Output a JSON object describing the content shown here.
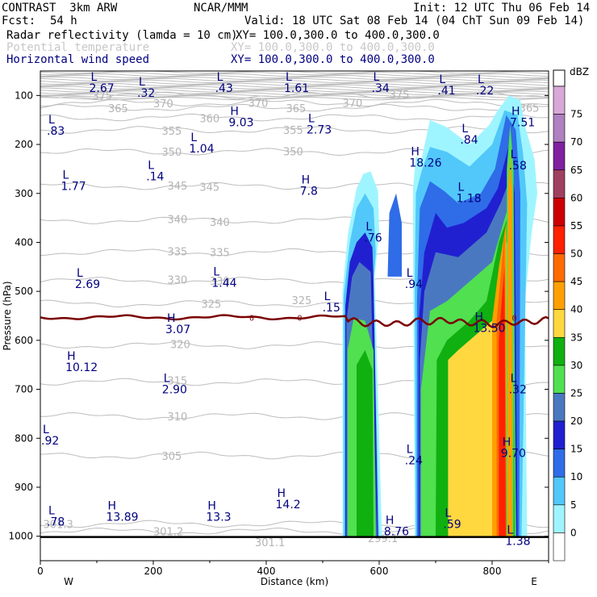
{
  "header": {
    "model": "CONTRAST  3km ARW",
    "org": "NCAR/MMM",
    "init": "Init: 12 UTC Thu 06 Feb 14",
    "fcst_label": "Fcst:",
    "fcst_value": "54 h",
    "valid": "Valid: 18 UTC Sat 08 Feb 14 (04 ChT Sun 09 Feb 14)",
    "fields": [
      {
        "name": "Radar reflectivity (lamda = 10 cm)",
        "xy": "XY= 100.0,300.0 to 400.0,300.0",
        "color": "#000000"
      },
      {
        "name": "Potential temperature",
        "xy": "XY= 100.0,300.0 to 400.0,300.0",
        "color": "#c8c8c8"
      },
      {
        "name": "Horizontal wind speed",
        "xy": "XY= 100.0,300.0 to 400.0,300.0",
        "color": "#000080"
      }
    ]
  },
  "chart_data": {
    "type": "heatmap",
    "xlabel": "Distance (km)",
    "ylabel": "Pressure (hPa)",
    "xlim": [
      0,
      900
    ],
    "ylim": [
      1050,
      50
    ],
    "x_ticks": [
      0,
      200,
      400,
      600,
      800
    ],
    "y_ticks": [
      100,
      200,
      300,
      400,
      500,
      600,
      700,
      800,
      900,
      1000
    ],
    "x_end_labels": [
      "W",
      "E"
    ],
    "colorbar": {
      "unit": "dBZ",
      "levels": [
        0,
        5,
        10,
        15,
        20,
        25,
        30,
        35,
        40,
        45,
        50,
        55,
        60,
        65,
        70,
        75
      ],
      "colors": [
        "#ffffff",
        "#9ff5ff",
        "#52c8fa",
        "#2f6ce8",
        "#2020d0",
        "#4a78c0",
        "#50e050",
        "#10b010",
        "#ffd840",
        "#ffa000",
        "#ff6a00",
        "#ff2000",
        "#cc0000",
        "#a04060",
        "#8020a0",
        "#b080c0",
        "#d8a8d8"
      ]
    },
    "theta_contours": [
      {
        "label": "375",
        "p": 100
      },
      {
        "label": "370",
        "p": 115
      },
      {
        "label": "365",
        "p": 125
      },
      {
        "label": "360",
        "p": 145
      },
      {
        "label": "355",
        "p": 170
      },
      {
        "label": "350",
        "p": 215
      },
      {
        "label": "345",
        "p": 285
      },
      {
        "label": "340",
        "p": 355
      },
      {
        "label": "335",
        "p": 420
      },
      {
        "label": "330",
        "p": 478
      },
      {
        "label": "325",
        "p": 525
      },
      {
        "label": "320",
        "p": 610
      },
      {
        "label": "315",
        "p": 685
      },
      {
        "label": "310",
        "p": 755
      },
      {
        "label": "305",
        "p": 835
      },
      {
        "label": "301.3",
        "p": 975
      },
      {
        "label": "301.2",
        "p": 990
      },
      {
        "label": "301.1",
        "p": 1012
      },
      {
        "label": "299.1",
        "p": 1004
      }
    ],
    "freezing_level": {
      "label": "0",
      "p_mean": 553
    },
    "wind_extrema": [
      {
        "type": "L",
        "value": "2.67",
        "x": 95,
        "p": 70
      },
      {
        "type": "L",
        "value": ".32",
        "x": 180,
        "p": 80
      },
      {
        "type": "L",
        "value": ".43",
        "x": 318,
        "p": 70
      },
      {
        "type": "L",
        "value": "1.61",
        "x": 440,
        "p": 70
      },
      {
        "type": "L",
        "value": ".34",
        "x": 595,
        "p": 70
      },
      {
        "type": "L",
        "value": ".41",
        "x": 712,
        "p": 75
      },
      {
        "type": "L",
        "value": ".22",
        "x": 780,
        "p": 75
      },
      {
        "type": "L",
        "value": ".83",
        "x": 20,
        "p": 157
      },
      {
        "type": "H",
        "value": "9.03",
        "x": 342,
        "p": 140
      },
      {
        "type": "L",
        "value": "2.73",
        "x": 480,
        "p": 155
      },
      {
        "type": "H",
        "value": "7.51",
        "x": 840,
        "p": 140
      },
      {
        "type": "L",
        "value": ".84",
        "x": 752,
        "p": 175
      },
      {
        "type": "L",
        "value": "1.04",
        "x": 272,
        "p": 193
      },
      {
        "type": "H",
        "value": "18.26",
        "x": 662,
        "p": 222
      },
      {
        "type": "L",
        "value": ".58",
        "x": 838,
        "p": 228
      },
      {
        "type": "L",
        "value": ".14",
        "x": 196,
        "p": 250
      },
      {
        "type": "L",
        "value": "1.77",
        "x": 45,
        "p": 270
      },
      {
        "type": "H",
        "value": "7.8",
        "x": 468,
        "p": 280
      },
      {
        "type": "L",
        "value": "1.18",
        "x": 745,
        "p": 295
      },
      {
        "type": "L",
        "value": ".76",
        "x": 582,
        "p": 375
      },
      {
        "type": "L",
        "value": "2.69",
        "x": 70,
        "p": 470
      },
      {
        "type": "L",
        "value": "1.44",
        "x": 312,
        "p": 468
      },
      {
        "type": "L",
        "value": ".94",
        "x": 654,
        "p": 470
      },
      {
        "type": "L",
        "value": ".15",
        "x": 508,
        "p": 518
      },
      {
        "type": "H",
        "value": "3.07",
        "x": 230,
        "p": 562
      },
      {
        "type": "H",
        "value": "13.50",
        "x": 775,
        "p": 560
      },
      {
        "type": "H",
        "value": "10.12",
        "x": 53,
        "p": 640
      },
      {
        "type": "L",
        "value": "2.90",
        "x": 224,
        "p": 685
      },
      {
        "type": "L",
        "value": ".32",
        "x": 838,
        "p": 685
      },
      {
        "type": "L",
        "value": ".92",
        "x": 10,
        "p": 790
      },
      {
        "type": "L",
        "value": ".24",
        "x": 654,
        "p": 830
      },
      {
        "type": "H",
        "value": "9.70",
        "x": 824,
        "p": 815
      },
      {
        "type": "H",
        "value": "13.89",
        "x": 125,
        "p": 945
      },
      {
        "type": "H",
        "value": "13.3",
        "x": 302,
        "p": 945
      },
      {
        "type": "H",
        "value": "14.2",
        "x": 425,
        "p": 920
      },
      {
        "type": "L",
        "value": ".78",
        "x": 20,
        "p": 955
      },
      {
        "type": "H",
        "value": "8.76",
        "x": 617,
        "p": 975
      },
      {
        "type": "L",
        "value": ".59",
        "x": 722,
        "p": 960
      },
      {
        "type": "L",
        "value": "1.38",
        "x": 832,
        "p": 995
      }
    ]
  }
}
